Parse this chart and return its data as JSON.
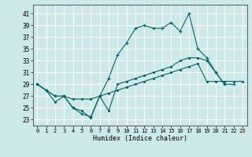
{
  "xlabel": "Humidex (Indice chaleur)",
  "bg_color": "#cce8e8",
  "grid_color": "#ffffff",
  "line_color": "#006666",
  "xlim": [
    -0.5,
    23.5
  ],
  "ylim": [
    22,
    42.5
  ],
  "yticks": [
    23,
    25,
    27,
    29,
    31,
    33,
    35,
    37,
    39,
    41
  ],
  "xticks": [
    0,
    1,
    2,
    3,
    4,
    5,
    6,
    7,
    8,
    9,
    10,
    11,
    12,
    13,
    14,
    15,
    16,
    17,
    18,
    19,
    20,
    21,
    22,
    23
  ],
  "series1_x": [
    0,
    1,
    2,
    3,
    4,
    5,
    6,
    7,
    8,
    9,
    10,
    11,
    12,
    13,
    14,
    15,
    16,
    17,
    18,
    19,
    20,
    21,
    22
  ],
  "series1_y": [
    29,
    28,
    27,
    27,
    25,
    24,
    23.5,
    27,
    30,
    34,
    36,
    38.5,
    39,
    38.5,
    38.5,
    39.5,
    38,
    41,
    35,
    33.5,
    31,
    29,
    29
  ],
  "series2_x": [
    0,
    1,
    2,
    3,
    4,
    5,
    6,
    7,
    8,
    9,
    10,
    11,
    12,
    13,
    14,
    15,
    16,
    17,
    18,
    19,
    20,
    21
  ],
  "series2_y": [
    29,
    28,
    26,
    27,
    25,
    24.5,
    23.3,
    27,
    24.5,
    29,
    29.5,
    30,
    30.5,
    31,
    31.5,
    32,
    33,
    33.5,
    33.5,
    33,
    31,
    29
  ],
  "series3_x": [
    0,
    2,
    3,
    4,
    5,
    6,
    7,
    8,
    9,
    10,
    11,
    12,
    13,
    14,
    15,
    16,
    17,
    18,
    19,
    20,
    21,
    22,
    23
  ],
  "series3_y": [
    29,
    27,
    27,
    26.5,
    26.5,
    26.5,
    27,
    27.5,
    28,
    28.5,
    29,
    29.5,
    30,
    30.5,
    31,
    31.5,
    32,
    32.5,
    29.5,
    29.5,
    29.5,
    29.5,
    29.5
  ]
}
